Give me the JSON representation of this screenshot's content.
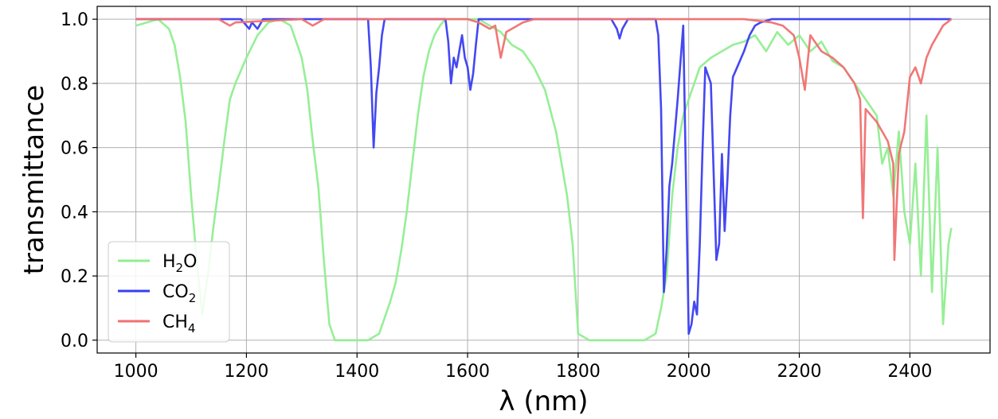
{
  "chart_data": {
    "type": "line",
    "xlabel": "λ (nm)",
    "ylabel": "transmittance",
    "xlim": [
      930,
      2545
    ],
    "ylim": [
      -0.04,
      1.04
    ],
    "xticks": [
      1000,
      1200,
      1400,
      1600,
      1800,
      2000,
      2200,
      2400
    ],
    "xtick_labels": [
      "1000",
      "1200",
      "1400",
      "1600",
      "1800",
      "2000",
      "2200",
      "2400"
    ],
    "yticks": [
      0.0,
      0.2,
      0.4,
      0.6,
      0.8,
      1.0
    ],
    "ytick_labels": [
      "0.0",
      "0.2",
      "0.4",
      "0.6",
      "0.8",
      "1.0"
    ],
    "grid": true,
    "legend_position": "lower-left",
    "series": [
      {
        "key": "h2o",
        "name": "H2O",
        "name_main": "H",
        "name_sub": "2",
        "name_tail": "O",
        "color": "#90ee90",
        "x": [
          1000,
          1020,
          1040,
          1060,
          1070,
          1080,
          1090,
          1100,
          1110,
          1120,
          1130,
          1140,
          1150,
          1160,
          1170,
          1180,
          1200,
          1220,
          1240,
          1260,
          1280,
          1300,
          1310,
          1320,
          1330,
          1340,
          1350,
          1360,
          1380,
          1400,
          1420,
          1440,
          1460,
          1470,
          1480,
          1490,
          1500,
          1510,
          1520,
          1530,
          1540,
          1550,
          1560,
          1580,
          1600,
          1620,
          1640,
          1660,
          1680,
          1700,
          1720,
          1740,
          1760,
          1770,
          1780,
          1790,
          1800,
          1820,
          1840,
          1860,
          1880,
          1900,
          1920,
          1940,
          1950,
          1960,
          1970,
          1980,
          1990,
          2000,
          2020,
          2040,
          2060,
          2080,
          2100,
          2120,
          2140,
          2160,
          2180,
          2200,
          2220,
          2240,
          2260,
          2280,
          2300,
          2320,
          2340,
          2350,
          2360,
          2370,
          2380,
          2390,
          2400,
          2410,
          2420,
          2430,
          2440,
          2450,
          2460,
          2470,
          2475
        ],
        "y": [
          0.98,
          0.99,
          1.0,
          0.97,
          0.92,
          0.82,
          0.68,
          0.45,
          0.25,
          0.08,
          0.2,
          0.35,
          0.48,
          0.62,
          0.75,
          0.8,
          0.88,
          0.95,
          0.99,
          1.0,
          0.98,
          0.88,
          0.78,
          0.62,
          0.48,
          0.25,
          0.05,
          0.0,
          0.0,
          0.0,
          0.0,
          0.02,
          0.12,
          0.18,
          0.28,
          0.4,
          0.55,
          0.7,
          0.82,
          0.9,
          0.95,
          0.98,
          1.0,
          1.0,
          1.0,
          1.0,
          0.98,
          0.96,
          0.92,
          0.9,
          0.85,
          0.78,
          0.65,
          0.55,
          0.45,
          0.3,
          0.02,
          0.0,
          0.0,
          0.0,
          0.0,
          0.0,
          0.0,
          0.02,
          0.1,
          0.2,
          0.45,
          0.6,
          0.7,
          0.75,
          0.85,
          0.88,
          0.9,
          0.92,
          0.93,
          0.95,
          0.9,
          0.96,
          0.92,
          0.95,
          0.9,
          0.93,
          0.87,
          0.85,
          0.8,
          0.75,
          0.7,
          0.55,
          0.6,
          0.45,
          0.65,
          0.4,
          0.3,
          0.55,
          0.2,
          0.7,
          0.15,
          0.6,
          0.05,
          0.3,
          0.35
        ]
      },
      {
        "key": "co2",
        "name": "CO2",
        "name_main": "CO",
        "name_sub": "2",
        "name_tail": "",
        "color": "#3a3ef0",
        "x": [
          1000,
          1190,
          1200,
          1205,
          1210,
          1215,
          1220,
          1230,
          1420,
          1425,
          1430,
          1435,
          1440,
          1445,
          1450,
          1460,
          1560,
          1565,
          1570,
          1575,
          1580,
          1585,
          1590,
          1595,
          1600,
          1605,
          1610,
          1615,
          1620,
          1860,
          1870,
          1875,
          1880,
          1890,
          1940,
          1945,
          1950,
          1955,
          1960,
          1965,
          1970,
          1980,
          1990,
          2000,
          2005,
          2010,
          2015,
          2020,
          2025,
          2030,
          2040,
          2050,
          2055,
          2060,
          2065,
          2070,
          2075,
          2080,
          2090,
          2100,
          2110,
          2120,
          2130,
          2150,
          2200,
          2475
        ],
        "y": [
          1.0,
          1.0,
          0.98,
          0.97,
          0.99,
          0.98,
          0.97,
          1.0,
          1.0,
          0.85,
          0.6,
          0.77,
          0.85,
          0.95,
          1.0,
          1.0,
          1.0,
          0.93,
          0.8,
          0.88,
          0.85,
          0.9,
          0.95,
          0.88,
          0.85,
          0.78,
          0.83,
          0.92,
          1.0,
          1.0,
          0.97,
          0.94,
          0.97,
          1.0,
          1.0,
          0.95,
          0.72,
          0.15,
          0.28,
          0.48,
          0.55,
          0.75,
          0.98,
          0.02,
          0.05,
          0.12,
          0.08,
          0.3,
          0.6,
          0.85,
          0.8,
          0.25,
          0.3,
          0.58,
          0.34,
          0.5,
          0.7,
          0.82,
          0.86,
          0.9,
          0.95,
          0.98,
          0.99,
          1.0,
          1.0,
          1.0
        ]
      },
      {
        "key": "ch4",
        "name": "CH4",
        "name_main": "CH",
        "name_sub": "4",
        "name_tail": "",
        "color": "#f07070",
        "x": [
          1000,
          1150,
          1160,
          1170,
          1180,
          1300,
          1320,
          1330,
          1340,
          1600,
          1620,
          1640,
          1650,
          1660,
          1670,
          1680,
          1700,
          1720,
          1900,
          2100,
          2150,
          2170,
          2190,
          2200,
          2210,
          2220,
          2240,
          2260,
          2280,
          2300,
          2310,
          2315,
          2320,
          2330,
          2340,
          2350,
          2360,
          2370,
          2372,
          2380,
          2390,
          2400,
          2410,
          2420,
          2430,
          2440,
          2450,
          2460,
          2475
        ],
        "y": [
          1.0,
          1.0,
          0.99,
          0.98,
          0.99,
          1.0,
          0.98,
          0.99,
          1.0,
          1.0,
          0.99,
          0.97,
          0.98,
          0.88,
          0.96,
          0.97,
          0.99,
          1.0,
          1.0,
          1.0,
          0.99,
          0.98,
          0.95,
          0.88,
          0.78,
          0.95,
          0.9,
          0.88,
          0.85,
          0.8,
          0.75,
          0.38,
          0.72,
          0.7,
          0.68,
          0.65,
          0.62,
          0.55,
          0.25,
          0.58,
          0.65,
          0.82,
          0.85,
          0.8,
          0.88,
          0.92,
          0.95,
          0.98,
          1.0
        ]
      }
    ]
  }
}
